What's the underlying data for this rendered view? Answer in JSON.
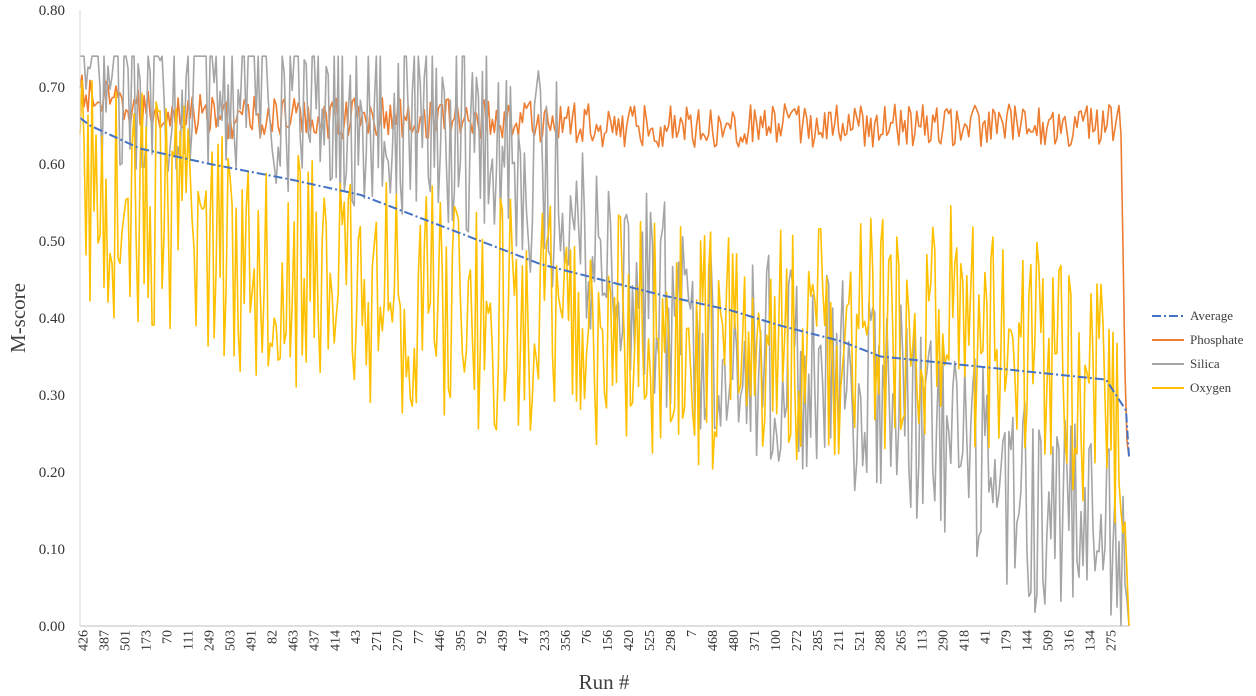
{
  "chart_data": {
    "type": "line",
    "title": "",
    "xlabel": "Run #",
    "ylabel": "M-score",
    "ylim": [
      0,
      0.8
    ],
    "yticks": [
      "0.00",
      "0.10",
      "0.20",
      "0.30",
      "0.40",
      "0.50",
      "0.60",
      "0.70",
      "0.80"
    ],
    "x_tick_labels": [
      "426",
      "387",
      "501",
      "173",
      "70",
      "111",
      "249",
      "503",
      "491",
      "82",
      "463",
      "437",
      "414",
      "43",
      "271",
      "270",
      "77",
      "446",
      "395",
      "92",
      "439",
      "47",
      "233",
      "356",
      "76",
      "156",
      "420",
      "525",
      "298",
      "7",
      "468",
      "480",
      "371",
      "100",
      "272",
      "285",
      "211",
      "521",
      "288",
      "265",
      "113",
      "290",
      "418",
      "41",
      "179",
      "144",
      "509",
      "316",
      "134",
      "275"
    ],
    "grid": false,
    "legend_position": "right",
    "num_points": 524,
    "series": [
      {
        "name": "Average",
        "style": "dash-dot",
        "color": "#4472C4",
        "points": [
          [
            0,
            0.66
          ],
          [
            10,
            0.65
          ],
          [
            60,
            0.62
          ],
          [
            130,
            0.6
          ],
          [
            210,
            0.58
          ],
          [
            280,
            0.56
          ],
          [
            340,
            0.53
          ],
          [
            400,
            0.5
          ],
          [
            460,
            0.47
          ],
          [
            520,
            0.45
          ],
          [
            580,
            0.43
          ],
          [
            650,
            0.41
          ],
          [
            700,
            0.39
          ],
          [
            760,
            0.37
          ],
          [
            800,
            0.35
          ],
          [
            1025,
            0.32
          ],
          [
            1045,
            0.28
          ],
          [
            1048,
            0.22
          ]
        ]
      },
      {
        "name": "Phosphate",
        "color": "#ED7D31",
        "points": [
          [
            0,
            0.69
          ],
          [
            50,
            0.67
          ],
          [
            150,
            0.66
          ],
          [
            300,
            0.66
          ],
          [
            400,
            0.66
          ],
          [
            520,
            0.65
          ],
          [
            650,
            0.65
          ],
          [
            800,
            0.65
          ],
          [
            900,
            0.65
          ],
          [
            1040,
            0.65
          ],
          [
            1045,
            0.25
          ],
          [
            1048,
            0.22
          ]
        ],
        "noise": 0.028
      },
      {
        "name": "Silica",
        "color": "#A5A5A5",
        "points": [
          [
            0,
            0.73
          ],
          [
            180,
            0.72
          ],
          [
            220,
            0.69
          ],
          [
            400,
            0.64
          ],
          [
            470,
            0.58
          ],
          [
            550,
            0.45
          ],
          [
            620,
            0.38
          ],
          [
            700,
            0.34
          ],
          [
            800,
            0.3
          ],
          [
            880,
            0.22
          ],
          [
            960,
            0.15
          ],
          [
            1030,
            0.12
          ],
          [
            1045,
            0.05
          ],
          [
            1048,
            0.0
          ]
        ],
        "noise": 0.14
      },
      {
        "name": "Oxygen",
        "color": "#FFC000",
        "points": [
          [
            0,
            0.57
          ],
          [
            100,
            0.52
          ],
          [
            200,
            0.47
          ],
          [
            300,
            0.43
          ],
          [
            420,
            0.4
          ],
          [
            520,
            0.38
          ],
          [
            620,
            0.36
          ],
          [
            720,
            0.37
          ],
          [
            800,
            0.37
          ],
          [
            880,
            0.39
          ],
          [
            960,
            0.36
          ],
          [
            1020,
            0.3
          ],
          [
            1040,
            0.27
          ],
          [
            1048,
            0.0
          ]
        ],
        "noise": 0.16
      }
    ]
  }
}
